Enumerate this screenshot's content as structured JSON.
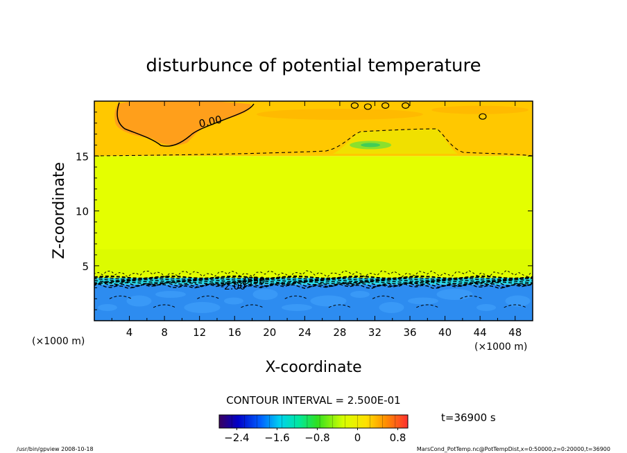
{
  "chart_data": {
    "type": "heatmap",
    "title": "disturbunce of potential temperature",
    "xlabel": "X-coordinate",
    "ylabel": "Z-coordinate",
    "x_unit": "(×1000 m)",
    "y_unit": "(×1000 m)",
    "xlim": [
      0,
      50
    ],
    "ylim": [
      0,
      20
    ],
    "x_ticks": [
      4,
      8,
      12,
      16,
      20,
      24,
      28,
      32,
      36,
      40,
      44,
      48
    ],
    "y_ticks": [
      5,
      10,
      15
    ],
    "contour_interval_label": "CONTOUR INTERVAL = 2.500E-01",
    "contour_labels": [
      "0.00",
      "-0.50",
      "-2.00"
    ],
    "time_label": "t=36900 s",
    "colorbar": {
      "range": [
        -2.75,
        1.0
      ],
      "ticks": [
        -2.4,
        -1.6,
        -0.8,
        0,
        0.8
      ],
      "tick_labels": [
        "−2.4",
        "−1.6",
        "−0.8",
        "0",
        "0.8"
      ]
    },
    "layers": [
      {
        "z_range": [
          0,
          3.3
        ],
        "value": -2.5
      },
      {
        "z_range": [
          3.3,
          3.9
        ],
        "value": -1.5
      },
      {
        "z_range": [
          3.9,
          15
        ],
        "value": -0.1
      },
      {
        "z_range": [
          15,
          20
        ],
        "value": 0.15
      }
    ],
    "colors": {
      "layer_low": "#2d8cf0",
      "layer_transition": "#28d8e8",
      "layer_mid": "#e4ff00",
      "layer_top": "#ffc800",
      "warm_blob": "#ff9a1e",
      "green_patch": "#60e040"
    }
  },
  "footer": {
    "left": "/usr/bin/gpview   2008-10-18",
    "right": "MarsCond_PotTemp.nc@PotTempDist,x=0:50000,z=0:20000,t=36900"
  }
}
